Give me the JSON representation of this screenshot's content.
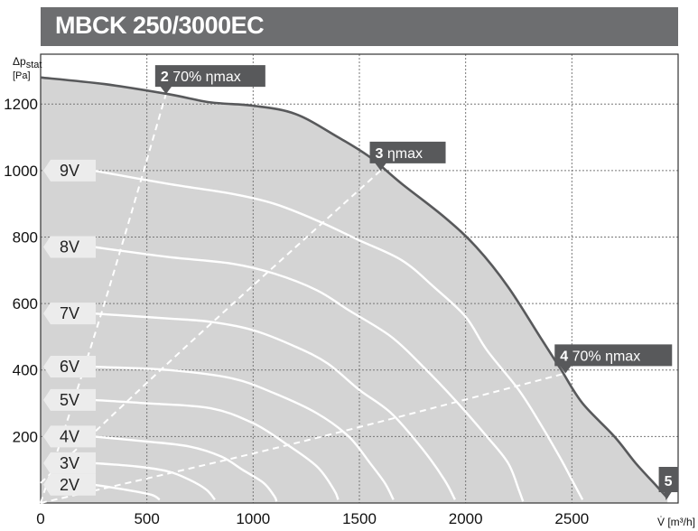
{
  "title": "MBCK 250/3000EC",
  "chart_data": {
    "type": "line",
    "title": "MBCK 250/3000EC",
    "xlabel": "V̇ [m³/h]",
    "ylabel": "Δp stat [Pa]",
    "xlim": [
      0,
      3000
    ],
    "ylim": [
      0,
      1350
    ],
    "x_ticks": [
      "0",
      "500",
      "1000",
      "1500",
      "2000",
      "2500"
    ],
    "y_ticks": [
      "200",
      "400",
      "600",
      "800",
      "1000",
      "1200"
    ],
    "grid": true,
    "max_curve": [
      [
        0,
        1280
      ],
      [
        300,
        1260
      ],
      [
        600,
        1230
      ],
      [
        800,
        1205
      ],
      [
        1000,
        1195
      ],
      [
        1200,
        1170
      ],
      [
        1400,
        1100
      ],
      [
        1550,
        1040
      ],
      [
        1700,
        960
      ],
      [
        1900,
        860
      ],
      [
        2050,
        770
      ],
      [
        2200,
        650
      ],
      [
        2350,
        500
      ],
      [
        2450,
        400
      ],
      [
        2550,
        300
      ],
      [
        2700,
        200
      ],
      [
        2800,
        120
      ],
      [
        2900,
        50
      ],
      [
        2950,
        15
      ]
    ],
    "series": [
      {
        "name": "9V",
        "values": [
          [
            250,
            1000
          ],
          [
            600,
            960
          ],
          [
            900,
            930
          ],
          [
            1100,
            900
          ],
          [
            1300,
            850
          ],
          [
            1500,
            790
          ],
          [
            1700,
            730
          ],
          [
            1850,
            650
          ],
          [
            2000,
            560
          ],
          [
            2100,
            460
          ],
          [
            2250,
            340
          ],
          [
            2350,
            240
          ],
          [
            2450,
            130
          ],
          [
            2500,
            70
          ],
          [
            2550,
            10
          ]
        ]
      },
      {
        "name": "8V",
        "values": [
          [
            250,
            770
          ],
          [
            600,
            740
          ],
          [
            900,
            720
          ],
          [
            1100,
            690
          ],
          [
            1300,
            640
          ],
          [
            1450,
            580
          ],
          [
            1650,
            500
          ],
          [
            1800,
            410
          ],
          [
            1950,
            310
          ],
          [
            2100,
            200
          ],
          [
            2200,
            120
          ],
          [
            2250,
            40
          ],
          [
            2270,
            5
          ]
        ]
      },
      {
        "name": "7V",
        "values": [
          [
            250,
            570
          ],
          [
            600,
            555
          ],
          [
            800,
            545
          ],
          [
            1000,
            520
          ],
          [
            1200,
            470
          ],
          [
            1350,
            420
          ],
          [
            1500,
            340
          ],
          [
            1650,
            270
          ],
          [
            1800,
            160
          ],
          [
            1900,
            70
          ],
          [
            1950,
            10
          ]
        ]
      },
      {
        "name": "6V",
        "values": [
          [
            250,
            410
          ],
          [
            600,
            400
          ],
          [
            900,
            375
          ],
          [
            1100,
            330
          ],
          [
            1300,
            270
          ],
          [
            1450,
            200
          ],
          [
            1550,
            120
          ],
          [
            1620,
            60
          ],
          [
            1660,
            10
          ]
        ]
      },
      {
        "name": "5V",
        "values": [
          [
            250,
            310
          ],
          [
            500,
            300
          ],
          [
            800,
            285
          ],
          [
            1000,
            240
          ],
          [
            1150,
            180
          ],
          [
            1300,
            110
          ],
          [
            1380,
            40
          ],
          [
            1400,
            10
          ]
        ]
      },
      {
        "name": "4V",
        "values": [
          [
            250,
            200
          ],
          [
            500,
            185
          ],
          [
            700,
            170
          ],
          [
            850,
            140
          ],
          [
            950,
            100
          ],
          [
            1050,
            60
          ],
          [
            1100,
            20
          ],
          [
            1110,
            5
          ]
        ]
      },
      {
        "name": "3V",
        "values": [
          [
            250,
            120
          ],
          [
            450,
            110
          ],
          [
            600,
            95
          ],
          [
            700,
            70
          ],
          [
            780,
            40
          ],
          [
            820,
            10
          ]
        ]
      },
      {
        "name": "2V",
        "values": [
          [
            250,
            55
          ],
          [
            400,
            40
          ],
          [
            520,
            25
          ],
          [
            560,
            10
          ]
        ]
      }
    ],
    "efficiency_lines": [
      {
        "label": "70% ηmax",
        "number": "2",
        "values": [
          [
            0,
            0
          ],
          [
            300,
            600
          ],
          [
            590,
            1230
          ]
        ]
      },
      {
        "label": "ηmax",
        "number": "3",
        "values": [
          [
            0,
            60
          ],
          [
            700,
            480
          ],
          [
            1600,
            1000
          ]
        ]
      },
      {
        "label": "70% ηmax",
        "number": "4",
        "values": [
          [
            0,
            0
          ],
          [
            1200,
            180
          ],
          [
            2470,
            390
          ]
        ]
      }
    ],
    "point5": {
      "number": "5",
      "x": 2960,
      "y": 0
    },
    "colors": {
      "area": "#d4d4d4",
      "curve": "#58595b",
      "tag": "#58595b",
      "label_bg": "#ececec",
      "line": "#ffffff"
    }
  }
}
